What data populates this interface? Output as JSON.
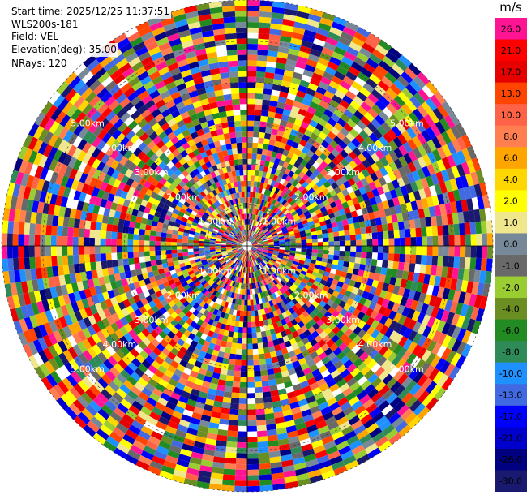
{
  "header": {
    "start_time": "Start time: 2025/12/25 11:37:51",
    "instrument": "WLS200s-181",
    "field": "Field: VEL",
    "elevation": "Elevation(deg): 35.00",
    "nrays": "NRays: 120"
  },
  "colorbar": {
    "unit": "m/s",
    "levels": [
      {
        "label": "26.0",
        "color": "#ff1493"
      },
      {
        "label": "21.0",
        "color": "#ff0000"
      },
      {
        "label": "17.0",
        "color": "#e60000"
      },
      {
        "label": "13.0",
        "color": "#ff4500"
      },
      {
        "label": "10.0",
        "color": "#ff6347"
      },
      {
        "label": "8.0",
        "color": "#ff7f50"
      },
      {
        "label": "6.0",
        "color": "#ffa500"
      },
      {
        "label": "4.0",
        "color": "#ffd700"
      },
      {
        "label": "2.0",
        "color": "#ffff00"
      },
      {
        "label": "1.0",
        "color": "#f0e68c"
      },
      {
        "label": "0.0",
        "color": "#778899"
      },
      {
        "label": "-1.0",
        "color": "#696969"
      },
      {
        "label": "-2.0",
        "color": "#9acd32"
      },
      {
        "label": "-4.0",
        "color": "#6b8e23"
      },
      {
        "label": "-6.0",
        "color": "#228b22"
      },
      {
        "label": "-8.0",
        "color": "#2e8b57"
      },
      {
        "label": "-10.0",
        "color": "#1e90ff"
      },
      {
        "label": "-13.0",
        "color": "#4169e1"
      },
      {
        "label": "-17.0",
        "color": "#0000ff"
      },
      {
        "label": "-21.0",
        "color": "#0000cd"
      },
      {
        "label": "-26.0",
        "color": "#000080"
      },
      {
        "label": "-30.0",
        "color": "#191970"
      }
    ]
  },
  "chart_data": {
    "type": "heatmap",
    "projection": "polar-ppi",
    "field": "VEL",
    "unit": "m/s",
    "rays": 120,
    "range_max_km": 6,
    "range_ring_labels": [
      "1.00km",
      "2.00km",
      "3.00km",
      "4.00km",
      "5.00km"
    ],
    "value_range": [
      -30,
      30
    ],
    "grid": true,
    "legend": "right"
  }
}
